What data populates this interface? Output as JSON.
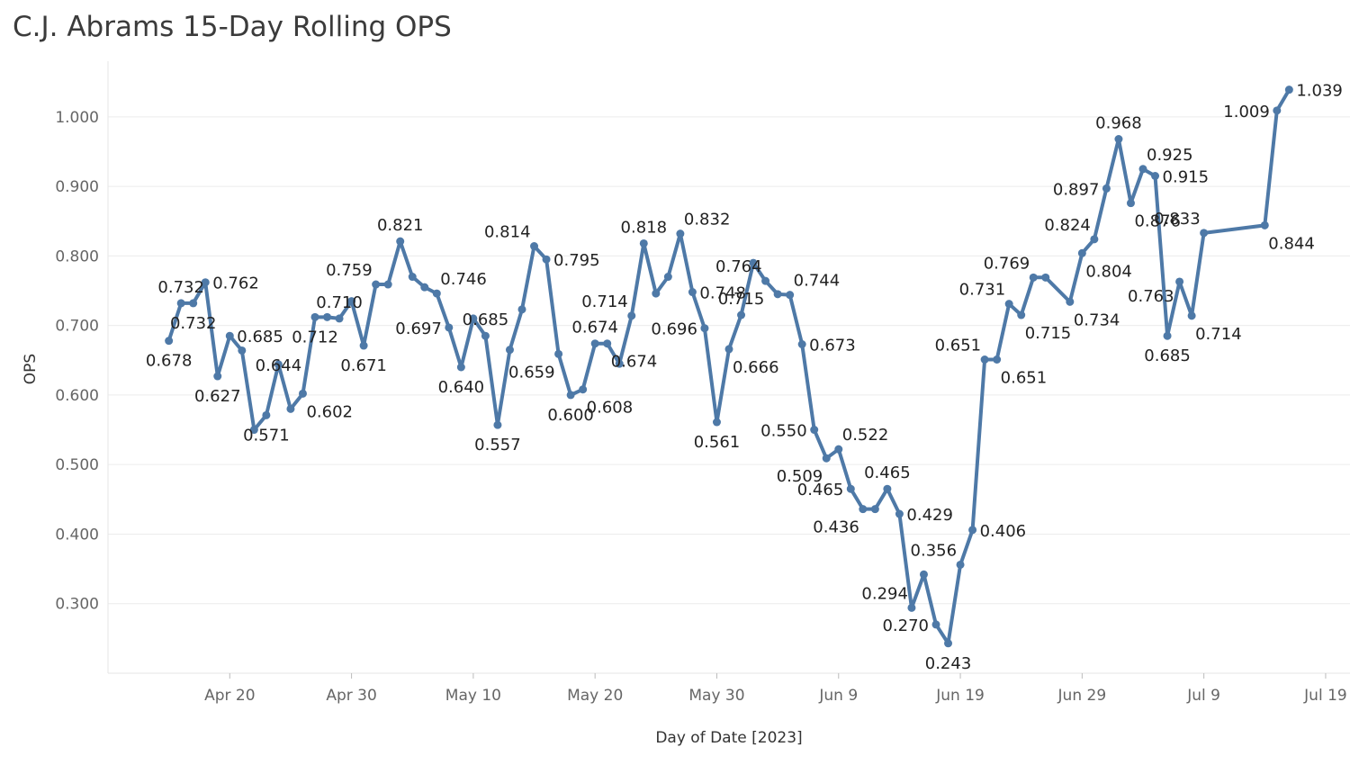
{
  "title": "C.J. Abrams 15-Day Rolling OPS",
  "chart_data": {
    "type": "line",
    "title": "C.J. Abrams 15-Day Rolling OPS",
    "xlabel": "Day of Date [2023]",
    "ylabel": "OPS",
    "x_ticks": [
      "Apr 20",
      "Apr 30",
      "May 10",
      "May 20",
      "May 30",
      "Jun 9",
      "Jun 19",
      "Jun 29",
      "Jul 9",
      "Jul 19"
    ],
    "x_tick_dates": [
      "2023-04-20",
      "2023-04-30",
      "2023-05-10",
      "2023-05-20",
      "2023-05-30",
      "2023-06-09",
      "2023-06-19",
      "2023-06-29",
      "2023-07-09",
      "2023-07-19"
    ],
    "y_ticks": [
      "0.300",
      "0.400",
      "0.500",
      "0.600",
      "0.700",
      "0.800",
      "0.900",
      "1.000"
    ],
    "xlim": [
      "2023-04-10",
      "2023-07-21"
    ],
    "ylim": [
      0.2,
      1.08
    ],
    "grid": true,
    "line_color": "#4e79a7",
    "series": [
      {
        "points": [
          {
            "date": "2023-04-15",
            "ops": 0.678,
            "label": "0.678",
            "pos": "below"
          },
          {
            "date": "2023-04-16",
            "ops": 0.732,
            "label": "0.732",
            "pos": "above"
          },
          {
            "date": "2023-04-17",
            "ops": 0.732,
            "label": "0.732",
            "pos": "below"
          },
          {
            "date": "2023-04-18",
            "ops": 0.762,
            "label": "0.762",
            "pos": "right"
          },
          {
            "date": "2023-04-19",
            "ops": 0.627,
            "label": "0.627",
            "pos": "below"
          },
          {
            "date": "2023-04-20",
            "ops": 0.685,
            "label": "0.685",
            "pos": "right"
          },
          {
            "date": "2023-04-21",
            "ops": 0.664
          },
          {
            "date": "2023-04-22",
            "ops": 0.55
          },
          {
            "date": "2023-04-23",
            "ops": 0.571,
            "label": "0.571",
            "pos": "below"
          },
          {
            "date": "2023-04-24",
            "ops": 0.644,
            "label": "0.644",
            "pos": "center"
          },
          {
            "date": "2023-04-25",
            "ops": 0.58
          },
          {
            "date": "2023-04-26",
            "ops": 0.602,
            "label": "0.602",
            "pos": "belowright"
          },
          {
            "date": "2023-04-27",
            "ops": 0.712,
            "label": "0.712",
            "pos": "below"
          },
          {
            "date": "2023-04-28",
            "ops": 0.712
          },
          {
            "date": "2023-04-29",
            "ops": 0.71,
            "label": "0.710",
            "pos": "above"
          },
          {
            "date": "2023-04-30",
            "ops": 0.735
          },
          {
            "date": "2023-05-01",
            "ops": 0.671,
            "label": "0.671",
            "pos": "below"
          },
          {
            "date": "2023-05-02",
            "ops": 0.759,
            "label": "0.759",
            "pos": "aboveleft"
          },
          {
            "date": "2023-05-03",
            "ops": 0.759
          },
          {
            "date": "2023-05-04",
            "ops": 0.821,
            "label": "0.821",
            "pos": "above"
          },
          {
            "date": "2023-05-05",
            "ops": 0.77
          },
          {
            "date": "2023-05-06",
            "ops": 0.755
          },
          {
            "date": "2023-05-07",
            "ops": 0.746,
            "label": "0.746",
            "pos": "aboveright"
          },
          {
            "date": "2023-05-08",
            "ops": 0.697,
            "label": "0.697",
            "pos": "left"
          },
          {
            "date": "2023-05-09",
            "ops": 0.64,
            "label": "0.640",
            "pos": "below"
          },
          {
            "date": "2023-05-10",
            "ops": 0.71
          },
          {
            "date": "2023-05-11",
            "ops": 0.685,
            "label": "0.685",
            "pos": "above"
          },
          {
            "date": "2023-05-12",
            "ops": 0.557,
            "label": "0.557",
            "pos": "below"
          },
          {
            "date": "2023-05-13",
            "ops": 0.665
          },
          {
            "date": "2023-05-14",
            "ops": 0.723
          },
          {
            "date": "2023-05-15",
            "ops": 0.814,
            "label": "0.814",
            "pos": "aboveleft"
          },
          {
            "date": "2023-05-16",
            "ops": 0.795,
            "label": "0.795",
            "pos": "right"
          },
          {
            "date": "2023-05-17",
            "ops": 0.659,
            "label": "0.659",
            "pos": "belowleft"
          },
          {
            "date": "2023-05-18",
            "ops": 0.6,
            "label": "0.600",
            "pos": "below"
          },
          {
            "date": "2023-05-19",
            "ops": 0.608,
            "label": "0.608",
            "pos": "belowright"
          },
          {
            "date": "2023-05-20",
            "ops": 0.674,
            "label": "0.674",
            "pos": "above"
          },
          {
            "date": "2023-05-21",
            "ops": 0.674,
            "label": "0.674",
            "pos": "belowright"
          },
          {
            "date": "2023-05-22",
            "ops": 0.645
          },
          {
            "date": "2023-05-23",
            "ops": 0.714,
            "label": "0.714",
            "pos": "aboveleft"
          },
          {
            "date": "2023-05-24",
            "ops": 0.818,
            "label": "0.818",
            "pos": "above"
          },
          {
            "date": "2023-05-25",
            "ops": 0.746
          },
          {
            "date": "2023-05-26",
            "ops": 0.77
          },
          {
            "date": "2023-05-27",
            "ops": 0.832,
            "label": "0.832",
            "pos": "aboveright"
          },
          {
            "date": "2023-05-28",
            "ops": 0.748,
            "label": "0.748",
            "pos": "right"
          },
          {
            "date": "2023-05-29",
            "ops": 0.696,
            "label": "0.696",
            "pos": "left"
          },
          {
            "date": "2023-05-30",
            "ops": 0.561,
            "label": "0.561",
            "pos": "below"
          },
          {
            "date": "2023-05-31",
            "ops": 0.666,
            "label": "0.666",
            "pos": "belowright"
          },
          {
            "date": "2023-06-01",
            "ops": 0.715,
            "label": "0.715",
            "pos": "above"
          },
          {
            "date": "2023-06-02",
            "ops": 0.79
          },
          {
            "date": "2023-06-03",
            "ops": 0.764,
            "label": "0.764",
            "pos": "aboveleft"
          },
          {
            "date": "2023-06-04",
            "ops": 0.745
          },
          {
            "date": "2023-06-05",
            "ops": 0.744,
            "label": "0.744",
            "pos": "aboveright"
          },
          {
            "date": "2023-06-06",
            "ops": 0.673,
            "label": "0.673",
            "pos": "right"
          },
          {
            "date": "2023-06-07",
            "ops": 0.55,
            "label": "0.550",
            "pos": "left"
          },
          {
            "date": "2023-06-08",
            "ops": 0.509,
            "label": "0.509",
            "pos": "belowleft"
          },
          {
            "date": "2023-06-09",
            "ops": 0.522,
            "label": "0.522",
            "pos": "aboveright"
          },
          {
            "date": "2023-06-10",
            "ops": 0.465,
            "label": "0.465",
            "pos": "left"
          },
          {
            "date": "2023-06-11",
            "ops": 0.436,
            "label": "0.436",
            "pos": "belowleft"
          },
          {
            "date": "2023-06-12",
            "ops": 0.436
          },
          {
            "date": "2023-06-13",
            "ops": 0.465,
            "label": "0.465",
            "pos": "above"
          },
          {
            "date": "2023-06-14",
            "ops": 0.429,
            "label": "0.429",
            "pos": "right"
          },
          {
            "date": "2023-06-15",
            "ops": 0.294,
            "label": "0.294",
            "pos": "aboveleft"
          },
          {
            "date": "2023-06-16",
            "ops": 0.342
          },
          {
            "date": "2023-06-17",
            "ops": 0.27,
            "label": "0.270",
            "pos": "left"
          },
          {
            "date": "2023-06-18",
            "ops": 0.243,
            "label": "0.243",
            "pos": "below"
          },
          {
            "date": "2023-06-19",
            "ops": 0.356,
            "label": "0.356",
            "pos": "aboveleft"
          },
          {
            "date": "2023-06-20",
            "ops": 0.406,
            "label": "0.406",
            "pos": "right"
          },
          {
            "date": "2023-06-21",
            "ops": 0.651,
            "label": "0.651",
            "pos": "aboveleft"
          },
          {
            "date": "2023-06-22",
            "ops": 0.651,
            "label": "0.651",
            "pos": "belowright"
          },
          {
            "date": "2023-06-23",
            "ops": 0.731,
            "label": "0.731",
            "pos": "aboveleft"
          },
          {
            "date": "2023-06-24",
            "ops": 0.715,
            "label": "0.715",
            "pos": "belowright"
          },
          {
            "date": "2023-06-25",
            "ops": 0.769,
            "label": "0.769",
            "pos": "aboveleft"
          },
          {
            "date": "2023-06-26",
            "ops": 0.769
          },
          {
            "date": "2023-06-28",
            "ops": 0.734,
            "label": "0.734",
            "pos": "belowright"
          },
          {
            "date": "2023-06-29",
            "ops": 0.804,
            "label": "0.804",
            "pos": "belowright"
          },
          {
            "date": "2023-06-30",
            "ops": 0.824,
            "label": "0.824",
            "pos": "aboveleft"
          },
          {
            "date": "2023-07-01",
            "ops": 0.897,
            "label": "0.897",
            "pos": "left"
          },
          {
            "date": "2023-07-02",
            "ops": 0.968,
            "label": "0.968",
            "pos": "above"
          },
          {
            "date": "2023-07-03",
            "ops": 0.876,
            "label": "0.876",
            "pos": "belowright"
          },
          {
            "date": "2023-07-04",
            "ops": 0.925,
            "label": "0.925",
            "pos": "aboveright"
          },
          {
            "date": "2023-07-05",
            "ops": 0.915,
            "label": "0.915",
            "pos": "right"
          },
          {
            "date": "2023-07-06",
            "ops": 0.685,
            "label": "0.685",
            "pos": "below"
          },
          {
            "date": "2023-07-07",
            "ops": 0.763,
            "label": "0.763",
            "pos": "leftbelow"
          },
          {
            "date": "2023-07-08",
            "ops": 0.714,
            "label": "0.714",
            "pos": "belowright"
          },
          {
            "date": "2023-07-09",
            "ops": 0.833,
            "label": "0.833",
            "pos": "aboveleft"
          },
          {
            "date": "2023-07-14",
            "ops": 0.844,
            "label": "0.844",
            "pos": "belowright"
          },
          {
            "date": "2023-07-15",
            "ops": 1.009,
            "label": "1.009",
            "pos": "left"
          },
          {
            "date": "2023-07-16",
            "ops": 1.039,
            "label": "1.039",
            "pos": "right"
          }
        ]
      }
    ]
  }
}
